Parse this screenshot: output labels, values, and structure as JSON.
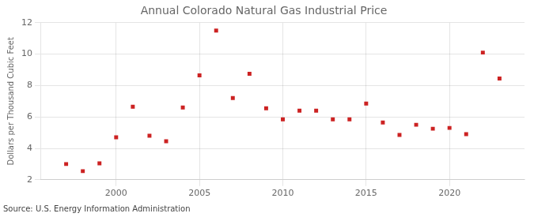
{
  "chart_data": {
    "type": "scatter",
    "title": "Annual Colorado Natural Gas Industrial Price",
    "ylabel": "Dollars per Thousand Cubic Feet",
    "annotations": [
      "Source: U.S. Energy Information Administration"
    ],
    "x": [
      1997,
      1998,
      1999,
      2000,
      2001,
      2002,
      2003,
      2004,
      2005,
      2006,
      2007,
      2008,
      2009,
      2010,
      2011,
      2012,
      2013,
      2014,
      2015,
      2016,
      2017,
      2018,
      2019,
      2020,
      2021,
      2022,
      2023
    ],
    "values": [
      3.0,
      2.55,
      3.05,
      4.7,
      6.65,
      4.8,
      4.45,
      6.6,
      8.65,
      11.5,
      7.2,
      8.75,
      6.55,
      5.85,
      6.4,
      6.4,
      5.85,
      5.85,
      6.85,
      5.65,
      4.85,
      5.5,
      5.25,
      5.3,
      4.9,
      10.1,
      8.45
    ],
    "color": "#cc2222",
    "marker": "square",
    "xlim": [
      1995.5,
      2024.5
    ],
    "xticks": [
      2000,
      2005,
      2010,
      2015,
      2020
    ],
    "ylim": [
      2,
      12
    ],
    "yticks": [
      2,
      4,
      6,
      8,
      10,
      12
    ],
    "grid": true
  }
}
